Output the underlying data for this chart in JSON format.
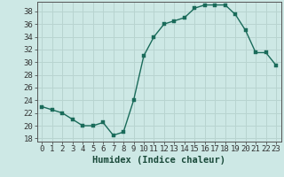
{
  "x": [
    0,
    1,
    2,
    3,
    4,
    5,
    6,
    7,
    8,
    9,
    10,
    11,
    12,
    13,
    14,
    15,
    16,
    17,
    18,
    19,
    20,
    21,
    22,
    23
  ],
  "y": [
    23,
    22.5,
    22,
    21,
    20,
    20,
    20.5,
    18.5,
    19,
    24,
    31,
    34,
    36,
    36.5,
    37,
    38.5,
    39,
    39,
    39,
    37.5,
    35,
    31.5,
    31.5,
    29.5
  ],
  "line_color": "#1a6b5a",
  "marker_color": "#1a6b5a",
  "bg_color": "#cde8e5",
  "grid_major_color": "#b8d4d0",
  "grid_minor_color": "#c8dedd",
  "xlabel": "Humidex (Indice chaleur)",
  "xlim": [
    -0.5,
    23.5
  ],
  "ylim": [
    17.5,
    39.5
  ],
  "yticks": [
    18,
    20,
    22,
    24,
    26,
    28,
    30,
    32,
    34,
    36,
    38
  ],
  "xticks": [
    0,
    1,
    2,
    3,
    4,
    5,
    6,
    7,
    8,
    9,
    10,
    11,
    12,
    13,
    14,
    15,
    16,
    17,
    18,
    19,
    20,
    21,
    22,
    23
  ],
  "xlabel_fontsize": 7.5,
  "tick_fontsize": 6.5,
  "line_width": 1.0,
  "marker_size": 2.5
}
